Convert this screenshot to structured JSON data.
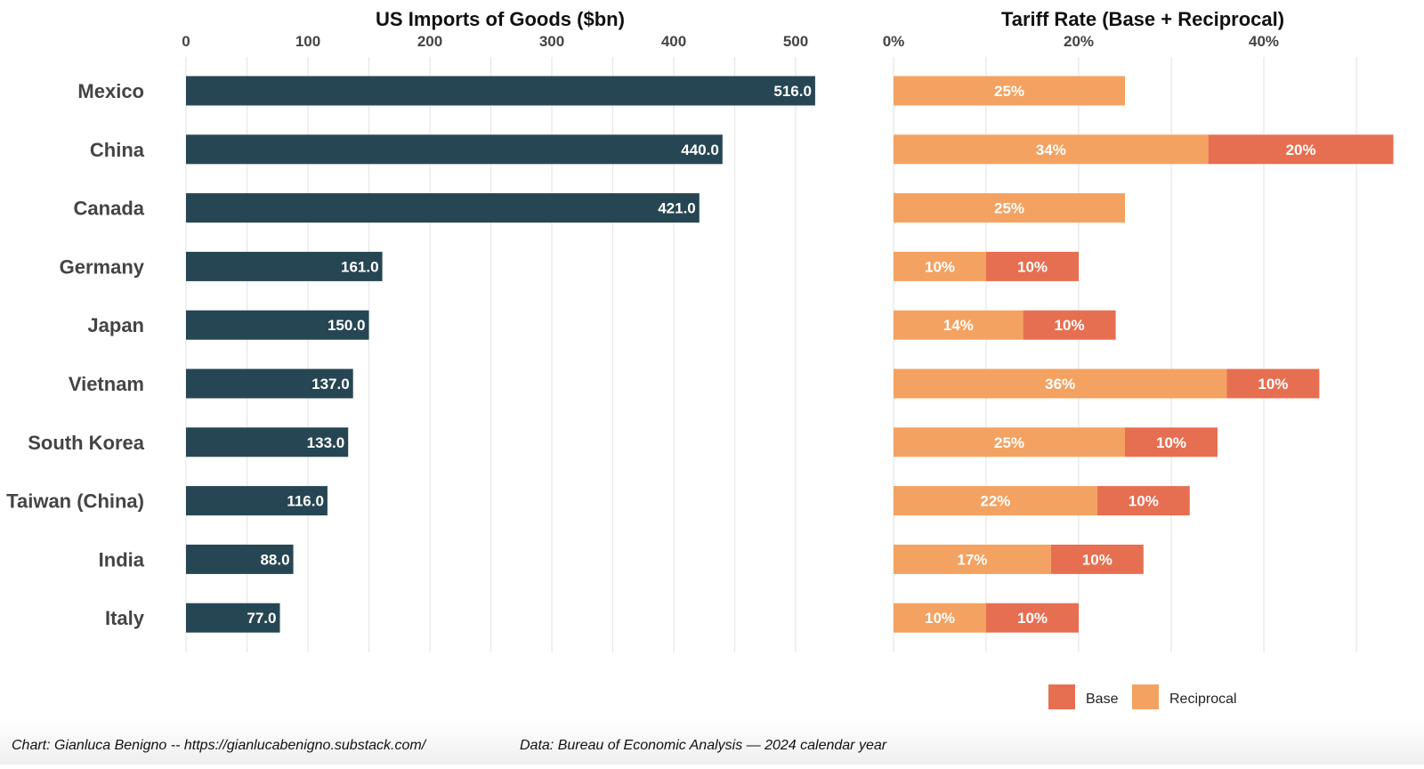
{
  "chart_data": [
    {
      "type": "bar",
      "orientation": "horizontal",
      "title": "US Imports of Goods ($bn)",
      "xlim": [
        0,
        530
      ],
      "ticks": [
        0,
        100,
        200,
        300,
        400,
        500
      ],
      "tick_labels": [
        "0",
        "100",
        "200",
        "300",
        "400",
        "500"
      ],
      "categories": [
        "Mexico",
        "China",
        "Canada",
        "Germany",
        "Japan",
        "Vietnam",
        "South Korea",
        "Taiwan (China)",
        "India",
        "Italy"
      ],
      "values": [
        516.0,
        440.0,
        421.0,
        161.0,
        150.0,
        137.0,
        133.0,
        116.0,
        88.0,
        77.0
      ],
      "data_labels": [
        "516.0",
        "440.0",
        "421.0",
        "161.0",
        "150.0",
        "137.0",
        "133.0",
        "116.0",
        "88.0",
        "77.0"
      ],
      "color": "#264653",
      "grid": true
    },
    {
      "type": "bar",
      "orientation": "horizontal",
      "stacked": true,
      "title": "Tariff Rate (Base + Reciprocal)",
      "xlim": [
        0,
        54
      ],
      "ticks": [
        0,
        20,
        40
      ],
      "tick_labels": [
        "0%",
        "20%",
        "40%"
      ],
      "categories": [
        "Mexico",
        "China",
        "Canada",
        "Germany",
        "Japan",
        "Vietnam",
        "South Korea",
        "Taiwan (China)",
        "India",
        "Italy"
      ],
      "series": [
        {
          "name": "Reciprocal",
          "color": "#f4a261",
          "values": [
            25,
            34,
            25,
            10,
            14,
            36,
            25,
            22,
            17,
            10
          ],
          "labels": [
            "25%",
            "34%",
            "25%",
            "10%",
            "14%",
            "36%",
            "25%",
            "22%",
            "17%",
            "10%"
          ]
        },
        {
          "name": "Base",
          "color": "#e76f51",
          "values": [
            0,
            20,
            0,
            10,
            10,
            10,
            10,
            10,
            10,
            10
          ],
          "labels": [
            "",
            "20%",
            "",
            "10%",
            "10%",
            "10%",
            "10%",
            "10%",
            "10%",
            "10%"
          ]
        }
      ],
      "legend": {
        "position": "bottom-right",
        "entries": [
          {
            "name": "Base",
            "color": "#e76f51"
          },
          {
            "name": "Reciprocal",
            "color": "#f4a261"
          }
        ]
      },
      "grid": true
    }
  ],
  "footer": {
    "chart_credit": "Chart: Gianluca Benigno -- https://gianlucabenigno.substack.com/",
    "data_source": "Data: Bureau of Economic Analysis — 2024 calendar year"
  }
}
